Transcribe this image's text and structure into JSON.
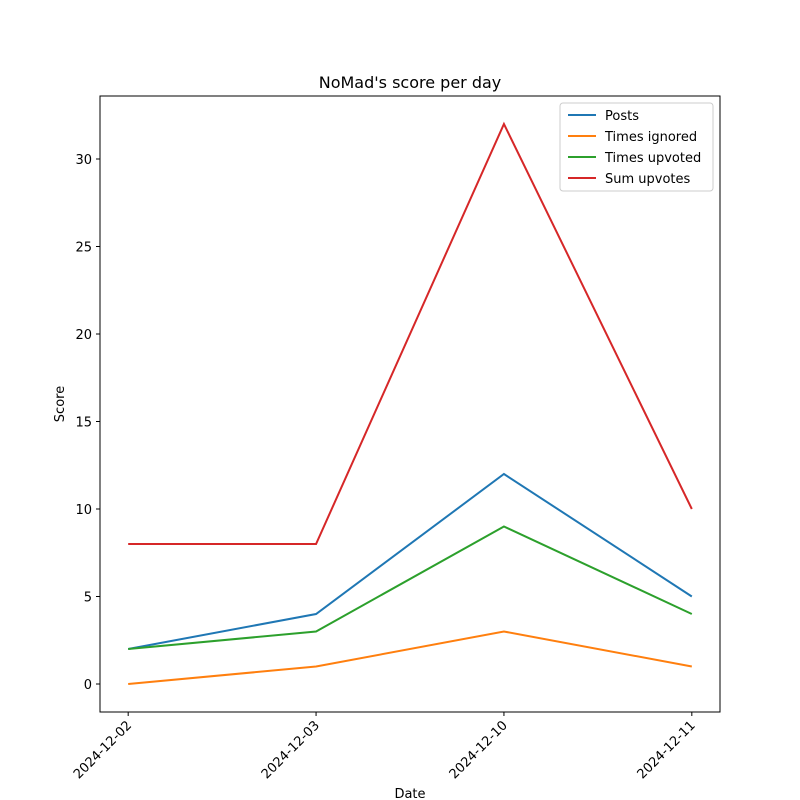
{
  "chart_data": {
    "type": "line",
    "title": "NoMad's score per day",
    "xlabel": "Date",
    "ylabel": "Score",
    "categories": [
      "2024-12-02",
      "2024-12-03",
      "2024-12-10",
      "2024-12-11"
    ],
    "series": [
      {
        "name": "Posts",
        "color": "#1f77b4",
        "values": [
          2,
          4,
          12,
          5
        ]
      },
      {
        "name": "Times ignored",
        "color": "#ff7f0e",
        "values": [
          0,
          1,
          3,
          1
        ]
      },
      {
        "name": "Times upvoted",
        "color": "#2ca02c",
        "values": [
          2,
          3,
          9,
          4
        ]
      },
      {
        "name": "Sum upvotes",
        "color": "#d62728",
        "values": [
          8,
          8,
          32,
          10
        ]
      }
    ],
    "ylim": [
      -1.6,
      33.6
    ],
    "yticks": [
      0,
      5,
      10,
      15,
      20,
      25,
      30
    ],
    "grid": false,
    "legend": "upper right"
  }
}
